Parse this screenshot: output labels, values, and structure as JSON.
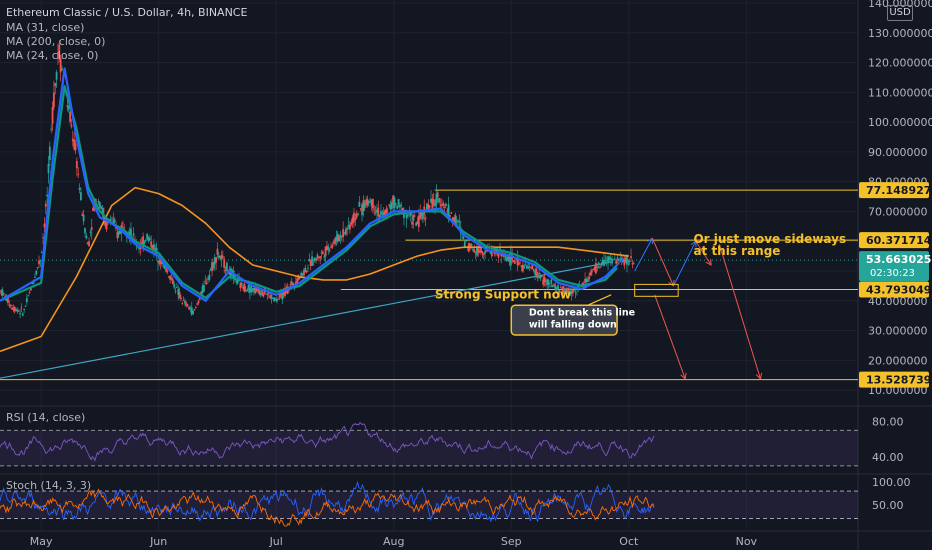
{
  "header": {
    "title": "Ethereum Classic / U.S. Dollar, 4h, BINANCE",
    "indicators": [
      "MA (31, close)",
      "MA (200, close, 0)",
      "MA (24, close, 0)"
    ],
    "currency": "USD"
  },
  "chart_data": [
    {
      "type": "line",
      "subtype": "candlestick",
      "axis": {
        "y_ticks": [
          10,
          20,
          30,
          40,
          50,
          60,
          70,
          80,
          90,
          100,
          110,
          120,
          130,
          140
        ],
        "y_tick_labels": [
          "10.000000",
          "20.000000",
          "30.000000",
          "40.000000",
          "50.000000",
          "60.000000",
          "70.000000",
          "80.000000",
          "90.000000",
          "100.000000",
          "110.000000",
          "120.000000",
          "130.000000",
          "140.000000"
        ],
        "ylim": [
          5,
          141
        ],
        "x_labels": [
          "May",
          "Jun",
          "Jul",
          "Aug",
          "Sep",
          "Oct",
          "Nov"
        ],
        "x_positions": [
          0,
          1,
          2,
          3,
          4,
          5,
          6
        ],
        "xlim": [
          -0.35,
          6.95
        ]
      },
      "grid": true,
      "series": [
        {
          "role": "price",
          "color": "#26a69a",
          "down_color": "#ef5350",
          "x": [
            -0.35,
            -0.25,
            -0.15,
            -0.08,
            0.0,
            0.05,
            0.1,
            0.15,
            0.2,
            0.25,
            0.3,
            0.35,
            0.4,
            0.45,
            0.5,
            0.55,
            0.6,
            0.65,
            0.7,
            0.8,
            0.85,
            0.9,
            1.0,
            1.1,
            1.2,
            1.3,
            1.4,
            1.5,
            1.6,
            1.7,
            1.8,
            1.9,
            2.0,
            2.1,
            2.2,
            2.3,
            2.4,
            2.5,
            2.6,
            2.7,
            2.8,
            2.9,
            3.0,
            3.1,
            3.2,
            3.3,
            3.4,
            3.5,
            3.55,
            3.6,
            3.7,
            3.8,
            3.9,
            4.0,
            4.1,
            4.2,
            4.3,
            4.4,
            4.5,
            4.6,
            4.7,
            4.8,
            4.9,
            5.0,
            5.05
          ],
          "y": [
            44,
            38,
            36,
            45,
            55,
            75,
            105,
            125,
            112,
            100,
            88,
            70,
            58,
            72,
            74,
            65,
            68,
            62,
            66,
            60,
            58,
            62,
            55,
            48,
            40,
            36,
            46,
            56,
            50,
            45,
            44,
            43,
            40,
            44,
            48,
            53,
            56,
            60,
            64,
            70,
            74,
            68,
            73,
            70,
            66,
            72,
            74,
            68,
            66,
            60,
            57,
            57,
            56,
            54,
            52,
            50,
            46,
            44,
            43,
            45,
            50,
            53.6,
            53.6,
            53.6,
            53.6
          ]
        },
        {
          "role": "ma24",
          "color": "#2962ff",
          "x": [
            -0.35,
            0.0,
            0.1,
            0.2,
            0.3,
            0.4,
            0.5,
            0.6,
            0.7,
            0.8,
            1.0,
            1.2,
            1.4,
            1.6,
            1.8,
            2.0,
            2.2,
            2.4,
            2.6,
            2.8,
            3.0,
            3.2,
            3.4,
            3.6,
            3.8,
            4.0,
            4.2,
            4.4,
            4.6,
            4.8,
            4.9
          ],
          "y": [
            40,
            48,
            88,
            118,
            95,
            76,
            68,
            66,
            63,
            59,
            55,
            45,
            40,
            50,
            45,
            42,
            46,
            52,
            58,
            66,
            70,
            70,
            71,
            62,
            57,
            55,
            52,
            46,
            44,
            48,
            52
          ]
        },
        {
          "role": "ma31",
          "color": "#089981",
          "x": [
            -0.35,
            0.0,
            0.1,
            0.2,
            0.3,
            0.4,
            0.5,
            0.6,
            0.7,
            0.8,
            1.0,
            1.2,
            1.4,
            1.6,
            1.8,
            2.0,
            2.2,
            2.4,
            2.6,
            2.8,
            3.0,
            3.2,
            3.4,
            3.6,
            3.8,
            4.0,
            4.2,
            4.4,
            4.6,
            4.8,
            4.9
          ],
          "y": [
            40,
            46,
            82,
            112,
            98,
            78,
            70,
            66,
            64,
            60,
            56,
            46,
            41,
            48,
            46,
            43,
            45,
            51,
            57,
            65,
            69,
            70,
            70,
            63,
            58,
            56,
            53,
            47,
            45,
            47,
            51
          ]
        },
        {
          "role": "ma200",
          "color": "#f7931a",
          "x": [
            -0.35,
            0.0,
            0.3,
            0.6,
            0.8,
            1.0,
            1.2,
            1.4,
            1.6,
            1.8,
            2.0,
            2.2,
            2.4,
            2.6,
            2.8,
            3.0,
            3.2,
            3.4,
            3.6,
            3.8,
            4.0,
            4.2,
            4.4,
            4.6,
            4.8,
            5.0
          ],
          "y": [
            23,
            28,
            48,
            72,
            78,
            76,
            72,
            66,
            58,
            52,
            50,
            48,
            47,
            47,
            49,
            52,
            55,
            57,
            58,
            58,
            58,
            58,
            58,
            57,
            56,
            55
          ]
        }
      ],
      "levels": [
        {
          "value": 77.148927,
          "label": "77.148927"
        },
        {
          "value": 60.371714,
          "label": "60.371714"
        },
        {
          "value": 43.793049,
          "label": "43.793049"
        },
        {
          "value": 13.528739,
          "label": "13.528739"
        }
      ],
      "current_price": {
        "value": 53.663025,
        "label": "53.663025",
        "countdown": "02:30:23"
      },
      "trendline": {
        "x": [
          -0.35,
          4.85
        ],
        "y": [
          14,
          53
        ]
      },
      "annotations": [
        {
          "text": "Strong Support now",
          "x": 3.35,
          "y": 42.5
        },
        {
          "text": "Or just move sideways",
          "x": 5.55,
          "y": 61
        },
        {
          "text": "at this range",
          "x": 5.55,
          "y": 57
        },
        {
          "text": "Dont break this line",
          "x": 4.15,
          "y": 36
        },
        {
          "text": "will falling down",
          "x": 4.15,
          "y": 32
        }
      ]
    },
    {
      "type": "line",
      "title": "RSI (14, close)",
      "axis": {
        "y_ticks": [
          40,
          80
        ],
        "y_tick_labels": [
          "40.00",
          "80.00"
        ],
        "ylim": [
          22,
          95
        ]
      },
      "bands": [
        30,
        70
      ],
      "series": [
        {
          "role": "rsi",
          "color": "#7e57c2"
        }
      ]
    },
    {
      "type": "line",
      "title": "Stoch (14, 3, 3)",
      "axis": {
        "y_ticks": [
          50,
          100
        ],
        "y_tick_labels": [
          "50.00",
          "100.00"
        ],
        "ylim": [
          -5,
          115
        ]
      },
      "bands": [
        20,
        80
      ],
      "series": [
        {
          "role": "k",
          "color": "#2962ff"
        },
        {
          "role": "d",
          "color": "#ff6d00"
        }
      ]
    }
  ]
}
